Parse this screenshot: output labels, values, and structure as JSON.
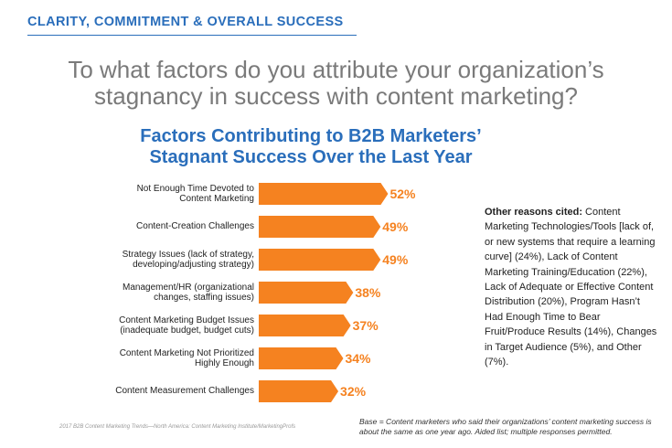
{
  "header": "CLARITY, COMMITMENT & OVERALL SUCCESS",
  "question": "To what factors do you attribute your organization’s stagnancy in success with content marketing?",
  "note": {
    "lead": "Other reasons cited:",
    "text": "Content Marketing Technologies/Tools [lack of, or new systems that require a learning curve] (24%), Lack of Content Marketing Training/Education (22%), Lack of Adequate or Effective Content Distribution (20%), Program Hasn’t Had Enough Time to Bear Fruit/Produce Results (14%), Changes in Target Audience (5%), and Other (7%)."
  },
  "source": "2017 B2B Content Marketing Trends—North America: Content Marketing Institute/MarketingProfs",
  "base": "Base = Content marketers who said their organizations’ content marketing success is about the same as one year ago. Aided list; multiple responses permitted.",
  "chart_data": {
    "type": "bar",
    "orientation": "horizontal",
    "title": "Factors Contributing to B2B Marketers’ Stagnant Success Over the Last Year",
    "categories": [
      "Not Enough Time Devoted to Content Marketing",
      "Content-Creation Challenges",
      "Strategy Issues (lack of strategy, developing/adjusting strategy)",
      "Management/HR (organizational changes, staffing issues)",
      "Content Marketing Budget Issues (inadequate budget, budget cuts)",
      "Content Marketing Not Prioritized Highly Enough",
      "Content Measurement Challenges"
    ],
    "values": [
      52,
      49,
      49,
      38,
      37,
      34,
      32
    ],
    "value_labels": [
      "52%",
      "49%",
      "49%",
      "38%",
      "37%",
      "34%",
      "32%"
    ],
    "color": "#f58220"
  }
}
